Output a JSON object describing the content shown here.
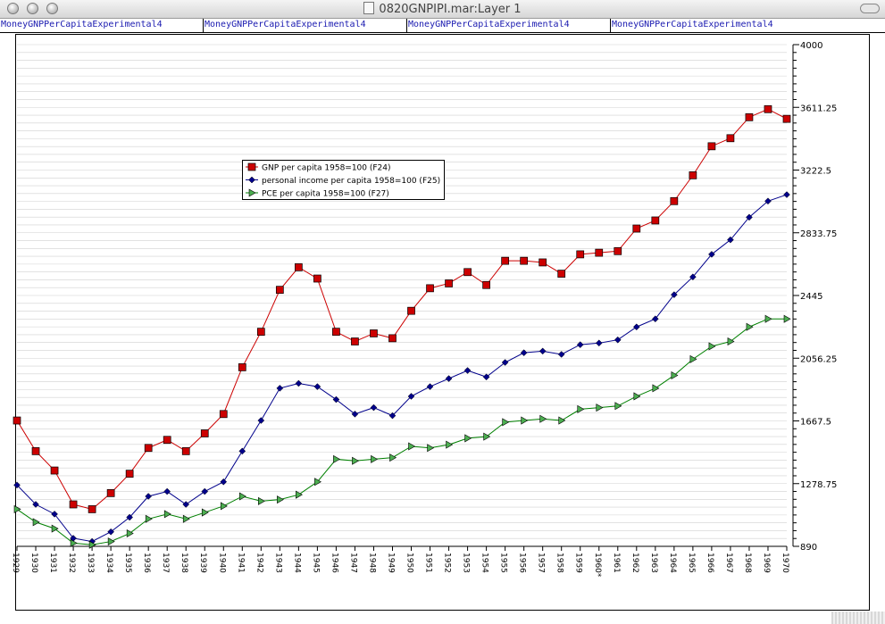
{
  "window": {
    "title": "0820GNPIPI.mar:Layer 1"
  },
  "tabs": [
    "MoneyGNPPerCapitaExperimental4",
    "MoneyGNPPerCapitaExperimental4",
    "MoneyGNPPerCapitaExperimental4",
    "MoneyGNPPerCapitaExperimental4"
  ],
  "colors": {
    "gnp": "#cc0000",
    "income": "#00008b",
    "pce": "#008000",
    "grid": "#d0d0d0"
  },
  "chart_data": {
    "type": "line",
    "title": "",
    "xlabel": "",
    "ylabel": "",
    "ylim": [
      890,
      4000
    ],
    "yticks": [
      "890",
      "1278.75",
      "1667.5",
      "2056.25",
      "2445",
      "2833.75",
      "3222.5",
      "3611.25",
      "4000"
    ],
    "legend_position": "upper-left",
    "grid": true,
    "categories": [
      "1929",
      "1930",
      "1931",
      "1932",
      "1933",
      "1934",
      "1935",
      "1936",
      "1937",
      "1938",
      "1939",
      "1940",
      "1941",
      "1942",
      "1943",
      "1944",
      "1945",
      "1946",
      "1947",
      "1948",
      "1949",
      "1950",
      "1951",
      "1952",
      "1953",
      "1954",
      "1955",
      "1956",
      "1957",
      "1958",
      "1959",
      "1960*",
      "1961",
      "1962",
      "1963",
      "1964",
      "1965",
      "1966",
      "1967",
      "1968",
      "1969",
      "1970"
    ],
    "series": [
      {
        "name": "GNP  per capita 1958=100 (F24)",
        "marker": "square",
        "values": [
          1670,
          1480,
          1360,
          1150,
          1120,
          1220,
          1340,
          1500,
          1550,
          1480,
          1590,
          1710,
          2000,
          2220,
          2480,
          2620,
          2550,
          2220,
          2160,
          2210,
          2180,
          2350,
          2490,
          2520,
          2590,
          2510,
          2660,
          2660,
          2650,
          2580,
          2700,
          2710,
          2720,
          2860,
          2910,
          3030,
          3190,
          3370,
          3420,
          3550,
          3600,
          3540
        ]
      },
      {
        "name": "personal income per capita 1958=100 (F25)",
        "marker": "diamond",
        "values": [
          1270,
          1150,
          1090,
          940,
          920,
          980,
          1070,
          1200,
          1230,
          1150,
          1230,
          1290,
          1480,
          1670,
          1870,
          1900,
          1880,
          1800,
          1710,
          1750,
          1700,
          1820,
          1880,
          1930,
          1980,
          1940,
          2030,
          2090,
          2100,
          2080,
          2140,
          2150,
          2170,
          2250,
          2300,
          2450,
          2560,
          2700,
          2790,
          2930,
          3030,
          3070
        ]
      },
      {
        "name": "PCE per capita 1958=100 (F27)",
        "marker": "triangle",
        "values": [
          1120,
          1040,
          1000,
          910,
          900,
          920,
          970,
          1060,
          1090,
          1060,
          1100,
          1140,
          1200,
          1170,
          1180,
          1210,
          1290,
          1430,
          1420,
          1430,
          1440,
          1510,
          1500,
          1520,
          1560,
          1570,
          1660,
          1670,
          1680,
          1670,
          1740,
          1750,
          1760,
          1820,
          1870,
          1950,
          2050,
          2130,
          2160,
          2250,
          2300,
          2300
        ]
      }
    ]
  }
}
